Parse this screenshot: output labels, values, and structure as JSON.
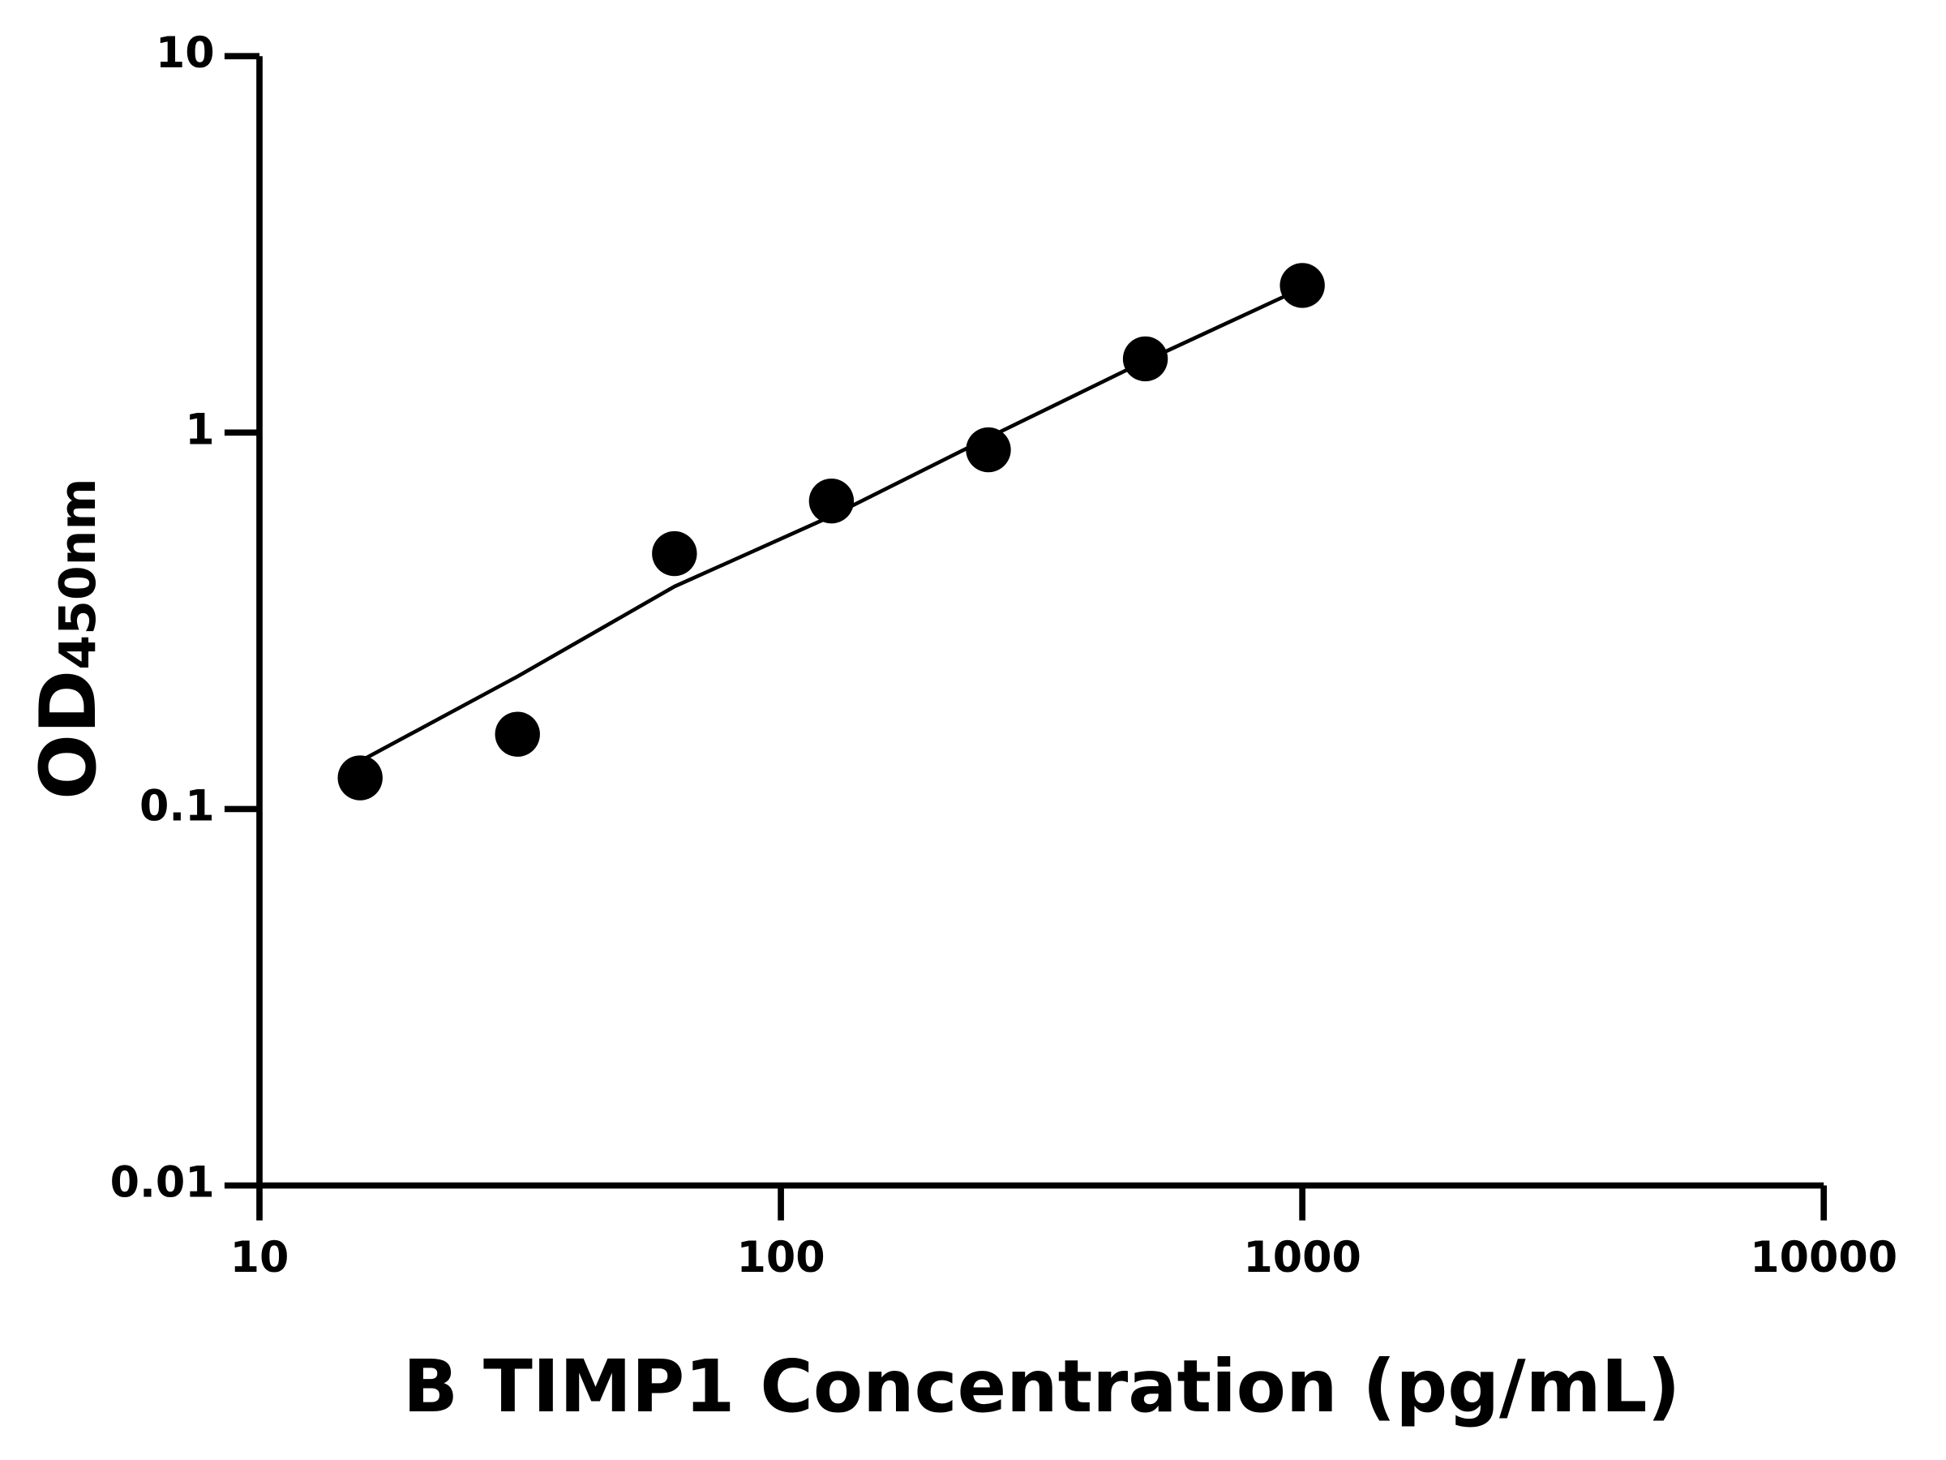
{
  "chart_data": {
    "type": "scatter",
    "xlabel": "B TIMP1 Concentration (pg/mL)",
    "ylabel": "OD",
    "ylabel_subscript": "450nm",
    "x": [
      15.6,
      31.25,
      62.5,
      125,
      250,
      500,
      1000
    ],
    "series": [
      {
        "color": "#000000",
        "values": [
          0.121,
          0.158,
          0.477,
          0.658,
          0.9,
          1.57,
          2.46
        ]
      },
      {
        "color": "#000000",
        "style": "line",
        "values": [
          0.134,
          0.225,
          0.39,
          0.6,
          0.97,
          1.55,
          2.42
        ]
      }
    ],
    "xlog": true,
    "ylog": true,
    "xlim": [
      10,
      10000
    ],
    "ylim": [
      0.01,
      10
    ],
    "xticks": [
      10,
      100,
      1000,
      10000
    ],
    "yticks": [
      0.01,
      0.1,
      1,
      10
    ]
  }
}
